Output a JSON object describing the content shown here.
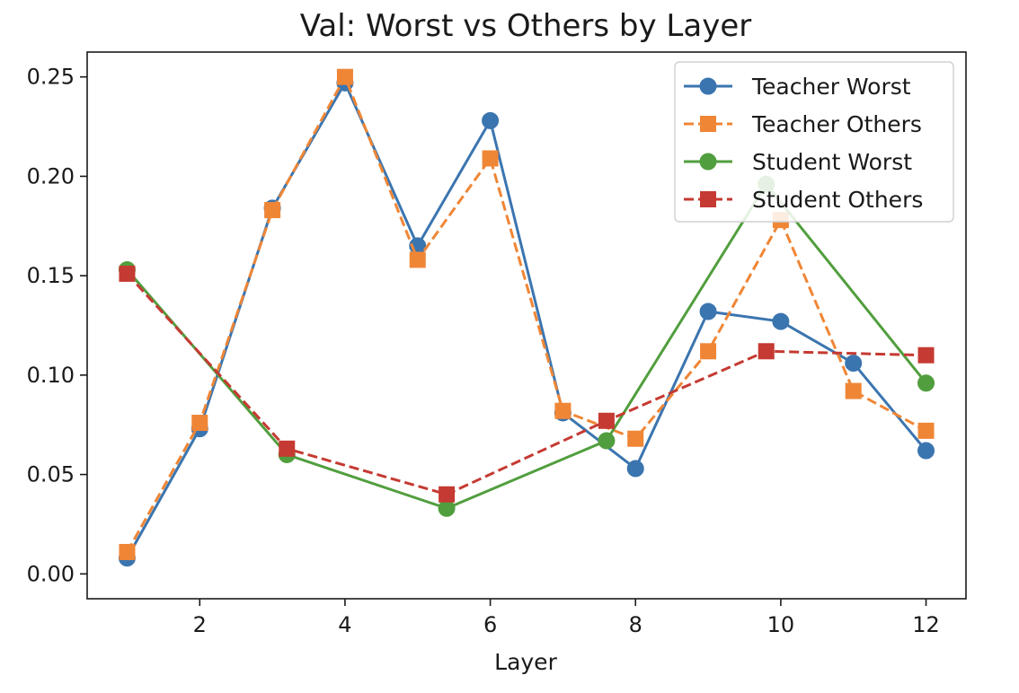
{
  "chart_data": {
    "type": "line",
    "title": "Val: Worst vs Others by Layer",
    "xlabel": "Layer",
    "ylabel": "",
    "xlim": [
      0.45,
      12.55
    ],
    "ylim": [
      -0.0125,
      0.2625
    ],
    "xticks": [
      2,
      4,
      6,
      8,
      10,
      12
    ],
    "yticks": [
      0.0,
      0.05,
      0.1,
      0.15,
      0.2,
      0.25
    ],
    "ytick_labels": [
      "0.00",
      "0.05",
      "0.10",
      "0.15",
      "0.20",
      "0.25"
    ],
    "grid": false,
    "legend_position": "top-right",
    "series": [
      {
        "name": "Teacher Worst",
        "color": "#3b75af",
        "line_style": "solid",
        "marker": "circle",
        "x": [
          1,
          2,
          3,
          4,
          5,
          6,
          7,
          8,
          9,
          10,
          11,
          12
        ],
        "y": [
          0.008,
          0.073,
          0.184,
          0.247,
          0.165,
          0.228,
          0.081,
          0.053,
          0.132,
          0.127,
          0.106,
          0.062
        ]
      },
      {
        "name": "Teacher Others",
        "color": "#ef8636",
        "line_style": "dashed",
        "marker": "square",
        "x": [
          1,
          2,
          3,
          4,
          5,
          6,
          7,
          8,
          9,
          10,
          11,
          12
        ],
        "y": [
          0.011,
          0.076,
          0.183,
          0.25,
          0.158,
          0.209,
          0.082,
          0.068,
          0.112,
          0.178,
          0.092,
          0.072
        ]
      },
      {
        "name": "Student Worst",
        "color": "#519e3e",
        "line_style": "solid",
        "marker": "circle",
        "x": [
          1,
          3.2,
          5.4,
          7.6,
          9.8,
          12
        ],
        "y": [
          0.153,
          0.06,
          0.033,
          0.067,
          0.196,
          0.096
        ]
      },
      {
        "name": "Student Others",
        "color": "#c53a32",
        "line_style": "dashed",
        "marker": "square",
        "x": [
          1,
          3.2,
          5.4,
          7.6,
          9.8,
          12
        ],
        "y": [
          0.151,
          0.063,
          0.04,
          0.077,
          0.112,
          0.11
        ]
      }
    ]
  }
}
